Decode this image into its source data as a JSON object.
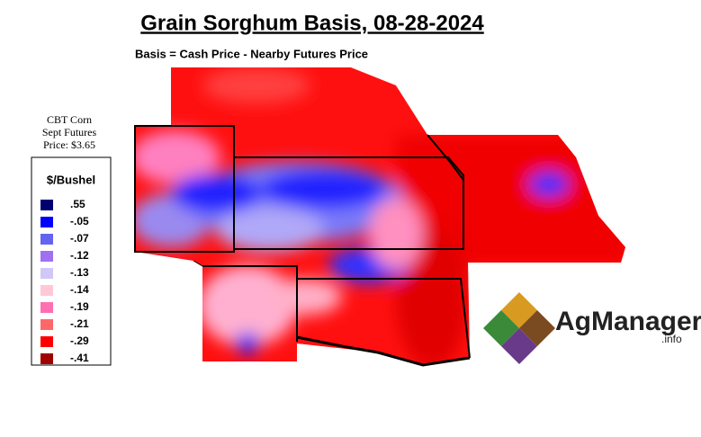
{
  "header": {
    "title": "Grain Sorghum Basis, 08-28-2024",
    "subtitle": "Basis = Cash Price - Nearby Futures Price"
  },
  "futures_note": {
    "lines": [
      "CBT Corn",
      "Sept Futures",
      "Price: $3.65"
    ]
  },
  "legend": {
    "title": "$/Bushel",
    "items": [
      {
        "label": ".55",
        "color": "#000070"
      },
      {
        "label": "-.05",
        "color": "#0000ff"
      },
      {
        "label": "-.07",
        "color": "#6464f0"
      },
      {
        "label": "-.12",
        "color": "#a070f0"
      },
      {
        "label": "-.13",
        "color": "#d0c8f8"
      },
      {
        "label": "-.14",
        "color": "#ffc8d8"
      },
      {
        "label": "-.19",
        "color": "#ff70b0"
      },
      {
        "label": "-.21",
        "color": "#ff6868"
      },
      {
        "label": "-.29",
        "color": "#ff0000"
      },
      {
        "label": "-.41",
        "color": "#a00000"
      }
    ]
  },
  "logo": {
    "name": "AgManager",
    "suffix": ".info"
  }
}
